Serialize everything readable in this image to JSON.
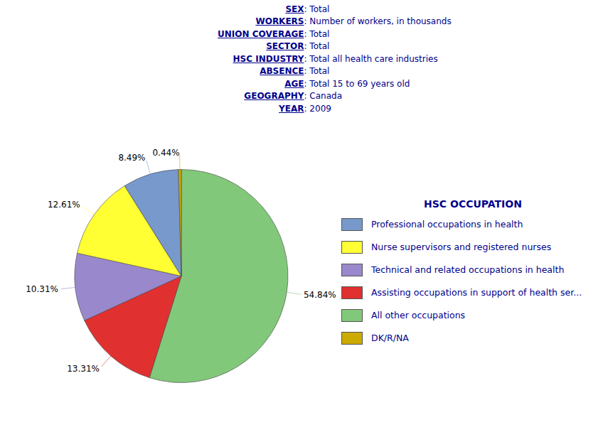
{
  "chart_data": {
    "type": "pie",
    "annotations": [
      {
        "bold": "SEX",
        "text": ": Total"
      },
      {
        "bold": "WORKERS",
        "text": ": Number of workers, in thousands"
      },
      {
        "bold": "UNION COVERAGE",
        "text": ": Total"
      },
      {
        "bold": "SECTOR",
        "text": ": Total"
      },
      {
        "bold": "HSC INDUSTRY",
        "text": ": Total all health care industries"
      },
      {
        "bold": "ABSENCE",
        "text": ": Total"
      },
      {
        "bold": "AGE",
        "text": ": Total 15 to 69 years old"
      },
      {
        "bold": "GEOGRAPHY",
        "text": ": Canada"
      },
      {
        "bold": "YEAR",
        "text": ": 2009"
      }
    ],
    "categories": [
      "All other occupations",
      "Assisting occupations in support of health ser...",
      "Technical and related occupations in health",
      "Nurse supervisors and registered nurses",
      "Professional occupations in health",
      "DK/R/NA"
    ],
    "values": [
      54.84,
      13.31,
      10.31,
      12.61,
      8.49,
      0.44
    ],
    "value_labels": [
      "54.84%",
      "13.31%",
      "10.31%",
      "12.61%",
      "8.49%",
      "0.44%"
    ],
    "data_labels": true,
    "colors": [
      "#82C87A",
      "#E03030",
      "#9988CC",
      "#FFFF33",
      "#7799CC",
      "#CCAA00"
    ],
    "legend": "right",
    "legend_title": "HSC OCCUPATION",
    "legend_entries": [
      "Professional occupations in health",
      "Nurse supervisors and registered nurses",
      "Technical and related occupations in health",
      "Assisting occupations in support of health ser...",
      "All other occupations",
      "DK/R/NA"
    ]
  }
}
